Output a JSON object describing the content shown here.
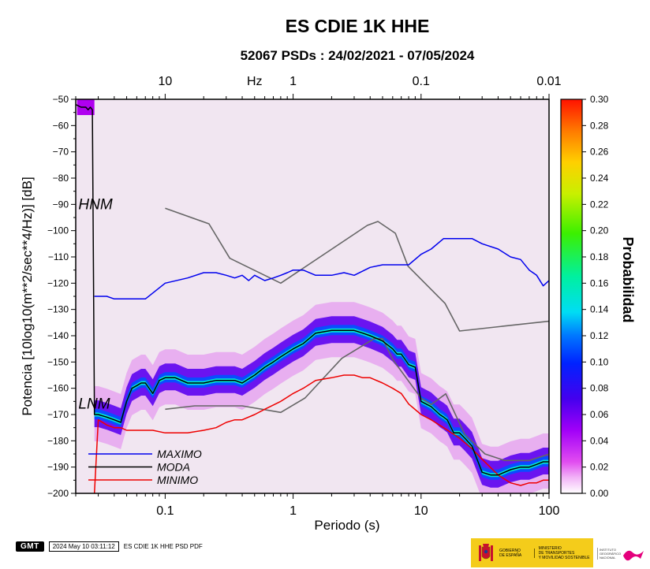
{
  "header": {
    "title": "ES CDIE 1K HHE",
    "subtitle": "52067 PSDs : 24/02/2021 - 07/05/2024"
  },
  "colors": {
    "maximo": "#0000ee",
    "moda": "#000000",
    "minimo": "#ee0000",
    "noise_model": "#666666",
    "background_density": "#f1e6f1"
  },
  "chart_data": {
    "type": "heatmap",
    "xlabel": "Periodo (s)",
    "ylabel": "Potencia [10log10(m**2/sec**4/Hz)] [dB]",
    "x_scale": "log",
    "xlim": [
      0.02,
      100
    ],
    "ylim": [
      -200,
      -50
    ],
    "x_ticks": [
      {
        "value": 0.1,
        "label": "0.1"
      },
      {
        "value": 1,
        "label": "1"
      },
      {
        "value": 10,
        "label": "10"
      },
      {
        "value": 100,
        "label": "100"
      }
    ],
    "y_ticks": [
      {
        "value": -50,
        "label": "−50"
      },
      {
        "value": -60,
        "label": "−60"
      },
      {
        "value": -70,
        "label": "−70"
      },
      {
        "value": -80,
        "label": "−80"
      },
      {
        "value": -90,
        "label": "−90"
      },
      {
        "value": -100,
        "label": "−100"
      },
      {
        "value": -110,
        "label": "−110"
      },
      {
        "value": -120,
        "label": "−120"
      },
      {
        "value": -130,
        "label": "−130"
      },
      {
        "value": -140,
        "label": "−140"
      },
      {
        "value": -150,
        "label": "−150"
      },
      {
        "value": -160,
        "label": "−160"
      },
      {
        "value": -170,
        "label": "−170"
      },
      {
        "value": -180,
        "label": "−180"
      },
      {
        "value": -190,
        "label": "−190"
      },
      {
        "value": -200,
        "label": "−200"
      }
    ],
    "top_axis": {
      "label": "Hz",
      "label_at_period": 0.5,
      "ticks": [
        {
          "period": 0.1,
          "label": "10"
        },
        {
          "period": 1,
          "label": "1"
        },
        {
          "period": 10,
          "label": "0.1"
        },
        {
          "period": 100,
          "label": "0.01"
        }
      ]
    },
    "colorbar": {
      "label": "Probabilidad",
      "range": [
        0,
        0.3
      ],
      "ticks": [
        "0.00",
        "0.02",
        "0.04",
        "0.06",
        "0.08",
        "0.10",
        "0.12",
        "0.14",
        "0.16",
        "0.18",
        "0.20",
        "0.22",
        "0.24",
        "0.26",
        "0.28",
        "0.30"
      ]
    },
    "model_labels": [
      {
        "text": "HNM",
        "x": 0.021,
        "y": -90
      },
      {
        "text": "LNM",
        "x": 0.021,
        "y": -166
      }
    ],
    "legend": {
      "position": "bottom-left",
      "entries": [
        {
          "name": "MAXIMO",
          "color": "#0000ee"
        },
        {
          "name": "MODA",
          "color": "#000000"
        },
        {
          "name": "MINIMO",
          "color": "#ee0000"
        }
      ]
    },
    "series": [
      {
        "name": "MAXIMO",
        "color": "#0000ee",
        "x": [
          0.028,
          0.03,
          0.035,
          0.04,
          0.07,
          0.1,
          0.15,
          0.2,
          0.25,
          0.3,
          0.35,
          0.4,
          0.45,
          0.5,
          0.6,
          0.7,
          0.8,
          0.9,
          1,
          1.2,
          1.5,
          2,
          2.5,
          3,
          4,
          5,
          6,
          7,
          8,
          10,
          12,
          15,
          20,
          25,
          30,
          40,
          50,
          60,
          70,
          80,
          90,
          100
        ],
        "y": [
          -125,
          -125,
          -125,
          -126,
          -126,
          -120,
          -118,
          -116,
          -116,
          -117,
          -118,
          -117,
          -119,
          -117,
          -119,
          -118,
          -117,
          -116,
          -115,
          -115,
          -117,
          -117,
          -116,
          -117,
          -114,
          -113,
          -113,
          -113,
          -113,
          -109,
          -107,
          -103,
          -103,
          -103,
          -105,
          -107,
          -110,
          -111,
          -115,
          -117,
          -121,
          -119
        ]
      },
      {
        "name": "MODA",
        "color": "#000000",
        "x": [
          0.02,
          0.022,
          0.024,
          0.025,
          0.026,
          0.027,
          0.028,
          0.03,
          0.035,
          0.04,
          0.045,
          0.05,
          0.055,
          0.06,
          0.065,
          0.07,
          0.08,
          0.09,
          0.1,
          0.12,
          0.15,
          0.2,
          0.25,
          0.3,
          0.35,
          0.4,
          0.5,
          0.6,
          0.7,
          0.8,
          1,
          1.2,
          1.5,
          2,
          2.5,
          3,
          3.5,
          4,
          5,
          6,
          6.5,
          7,
          7.5,
          8,
          9,
          10,
          12,
          14,
          15,
          16,
          18,
          20,
          22,
          25,
          30,
          35,
          40,
          50,
          60,
          70,
          80,
          90,
          100
        ],
        "y": [
          -52,
          -53,
          -53,
          -54,
          -53,
          -54,
          -170,
          -170,
          -171,
          -172,
          -173,
          -165,
          -160,
          -159,
          -158,
          -158,
          -162,
          -157,
          -156,
          -156,
          -158,
          -158,
          -157,
          -157,
          -157,
          -158,
          -155,
          -152,
          -150,
          -148,
          -145,
          -143,
          -139,
          -138,
          -138,
          -138,
          -139,
          -140,
          -142,
          -145,
          -147,
          -147,
          -149,
          -151,
          -152,
          -165,
          -167,
          -170,
          -171,
          -172,
          -177,
          -177,
          -179,
          -182,
          -192,
          -193,
          -193,
          -191,
          -190,
          -190,
          -189,
          -188,
          -188
        ]
      },
      {
        "name": "MINIMO",
        "color": "#ee0000",
        "x": [
          0.028,
          0.03,
          0.035,
          0.04,
          0.045,
          0.05,
          0.06,
          0.07,
          0.08,
          0.1,
          0.12,
          0.15,
          0.2,
          0.25,
          0.3,
          0.35,
          0.4,
          0.5,
          0.6,
          0.8,
          1,
          1.2,
          1.5,
          2,
          2.5,
          3,
          3.5,
          4,
          5,
          6,
          7,
          8,
          10,
          12,
          15,
          20,
          25,
          30,
          40,
          50,
          60,
          70,
          80,
          90,
          100
        ],
        "y": [
          -200,
          -172,
          -174,
          -175,
          -175,
          -176,
          -176,
          -176,
          -176,
          -177,
          -177,
          -177,
          -176,
          -175,
          -173,
          -172,
          -172,
          -170,
          -168,
          -165,
          -162,
          -160,
          -157,
          -156,
          -155,
          -155,
          -156,
          -156,
          -158,
          -160,
          -162,
          -166,
          -170,
          -172,
          -175,
          -179,
          -183,
          -187,
          -193,
          -196,
          -197,
          -196,
          -196,
          -195,
          -195
        ]
      },
      {
        "name": "HNM",
        "color": "#666666",
        "x": [
          0.1,
          0.22,
          0.32,
          0.8,
          3.8,
          4.6,
          6.3,
          7.9,
          15.4,
          20,
          354.8
        ],
        "y": [
          -91.5,
          -97.4,
          -110.5,
          -120,
          -98,
          -96.5,
          -101,
          -113.5,
          -127.7,
          -138.2,
          -131.5
        ]
      },
      {
        "name": "LNM",
        "color": "#666666",
        "x": [
          0.1,
          0.17,
          0.4,
          0.8,
          1.24,
          2.4,
          4.3,
          5,
          6,
          10,
          12,
          15.6,
          21.9,
          31.6,
          45,
          70,
          101
        ],
        "y": [
          -168,
          -166.7,
          -166.7,
          -169.2,
          -163.7,
          -148.6,
          -141.1,
          -141.1,
          -149,
          -163.8,
          -166.2,
          -162.1,
          -177.5,
          -185,
          -187.5,
          -187.5,
          -185
        ]
      }
    ]
  },
  "footer": {
    "logo": "GMT",
    "timestamp": "2024 May 10 03:11:12",
    "caption": "ES CDIE 1K HHE PSD PDF",
    "gov_line1": "GOBIERNO",
    "gov_line2": "DE ESPAÑA",
    "ministry_line1": "MINISTERIO",
    "ministry_line2": "DE TRANSPORTES",
    "ministry_line3": "Y MOVILIDAD SOSTENIBLE",
    "ign_line1": "INSTITUTO",
    "ign_line2": "GEOGRÁFICO",
    "ign_line3": "NACIONAL"
  }
}
